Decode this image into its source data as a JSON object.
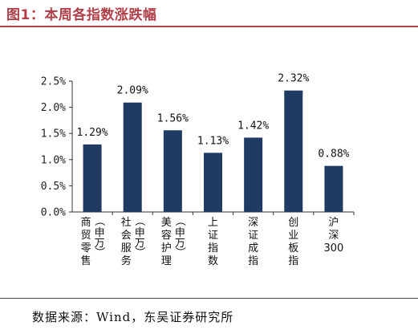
{
  "header": {
    "title": "图1：本周各指数涨跌幅"
  },
  "footer": {
    "source": "数据来源：Wind，东吴证券研究所"
  },
  "chart_data": {
    "type": "bar",
    "title": "",
    "xlabel": "",
    "ylabel": "",
    "bar_color": "#1f3b63",
    "ylim": [
      0,
      2.5
    ],
    "yticks": [
      "0.0%",
      "0.5%",
      "1.0%",
      "1.5%",
      "2.0%",
      "2.5%"
    ],
    "ytick_values": [
      0,
      0.5,
      1.0,
      1.5,
      2.0,
      2.5
    ],
    "grid": false,
    "categories": [
      [
        "商",
        "贸",
        "零",
        "售",
        "（",
        "申",
        "万",
        "）"
      ],
      [
        "社",
        "会",
        "服",
        "务",
        "（",
        "申",
        "万",
        "）"
      ],
      [
        "美",
        "容",
        "护",
        "理",
        "（",
        "申",
        "万",
        "）"
      ],
      [
        "上",
        "证",
        "指",
        "数"
      ],
      [
        "深",
        "证",
        "成",
        "指"
      ],
      [
        "创",
        "业",
        "板",
        "指"
      ],
      [
        "沪",
        "深",
        "300"
      ]
    ],
    "values": [
      1.29,
      2.09,
      1.56,
      1.13,
      1.42,
      2.32,
      0.88
    ],
    "labels": [
      "1.29%",
      "2.09%",
      "1.56%",
      "1.13%",
      "1.42%",
      "2.32%",
      "0.88%"
    ]
  }
}
